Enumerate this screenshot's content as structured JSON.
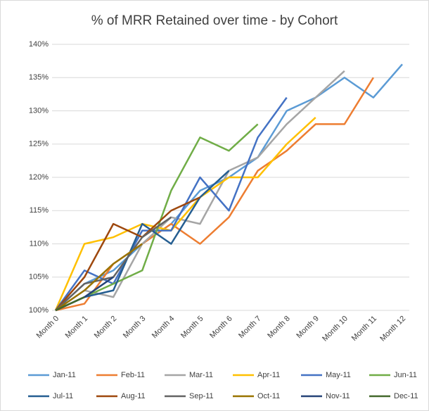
{
  "chart_data": {
    "type": "line",
    "title": "% of MRR Retained over time - by Cohort",
    "categories": [
      "Month 0",
      "Month 1",
      "Month 2",
      "Month 3",
      "Month 4",
      "Month 5",
      "Month 6",
      "Month 7",
      "Month 8",
      "Month 9",
      "Month 10",
      "Month 11",
      "Month 12"
    ],
    "series": [
      {
        "name": "Jan-11",
        "color": "#5b9bd5",
        "values": [
          100,
          104,
          106,
          110,
          113,
          118,
          120,
          123,
          130,
          132,
          135,
          132,
          137
        ]
      },
      {
        "name": "Feb-11",
        "color": "#ed7d31",
        "values": [
          100,
          101,
          107,
          110,
          113,
          110,
          114,
          121,
          124,
          128,
          128,
          135,
          null
        ]
      },
      {
        "name": "Mar-11",
        "color": "#a5a5a5",
        "values": [
          100,
          103,
          102,
          110,
          114,
          113,
          121,
          123,
          128,
          132,
          136,
          null,
          null
        ]
      },
      {
        "name": "Apr-11",
        "color": "#ffc000",
        "values": [
          100,
          110,
          111,
          113,
          112,
          117,
          120,
          120,
          125,
          129,
          null,
          null,
          null
        ]
      },
      {
        "name": "May-11",
        "color": "#4472c4",
        "values": [
          100,
          106,
          104,
          112,
          112,
          120,
          115,
          126,
          132,
          null,
          null,
          null,
          null
        ]
      },
      {
        "name": "Jun-11",
        "color": "#70ad47",
        "values": [
          100,
          102,
          104,
          106,
          118,
          126,
          124,
          128,
          null,
          null,
          null,
          null,
          null
        ]
      },
      {
        "name": "Jul-11",
        "color": "#255e91",
        "values": [
          100,
          102,
          103,
          113,
          110,
          117,
          121,
          null,
          null,
          null,
          null,
          null,
          null
        ]
      },
      {
        "name": "Aug-11",
        "color": "#9e480e",
        "values": [
          100,
          105,
          113,
          111,
          115,
          117,
          null,
          null,
          null,
          null,
          null,
          null,
          null
        ]
      },
      {
        "name": "Sep-11",
        "color": "#636363",
        "values": [
          100,
          104,
          105,
          111,
          114,
          null,
          null,
          null,
          null,
          null,
          null,
          null,
          null
        ]
      },
      {
        "name": "Oct-11",
        "color": "#997300",
        "values": [
          100,
          103,
          107,
          110,
          null,
          null,
          null,
          null,
          null,
          null,
          null,
          null,
          null
        ]
      },
      {
        "name": "Nov-11",
        "color": "#264478",
        "values": [
          100,
          102,
          105,
          null,
          null,
          null,
          null,
          null,
          null,
          null,
          null,
          null,
          null
        ]
      },
      {
        "name": "Dec-11",
        "color": "#43682b",
        "values": [
          100,
          102,
          null,
          null,
          null,
          null,
          null,
          null,
          null,
          null,
          null,
          null,
          null
        ]
      }
    ],
    "ylim": [
      100,
      140
    ],
    "yticks": [
      {
        "value": 100,
        "label": "100%"
      },
      {
        "value": 105,
        "label": "105%"
      },
      {
        "value": 110,
        "label": "110%"
      },
      {
        "value": 115,
        "label": "115%"
      },
      {
        "value": 120,
        "label": "120%"
      },
      {
        "value": 125,
        "label": "125%"
      },
      {
        "value": 130,
        "label": "130%"
      },
      {
        "value": 135,
        "label": "135%"
      },
      {
        "value": 140,
        "label": "140%"
      }
    ],
    "grid": true
  }
}
